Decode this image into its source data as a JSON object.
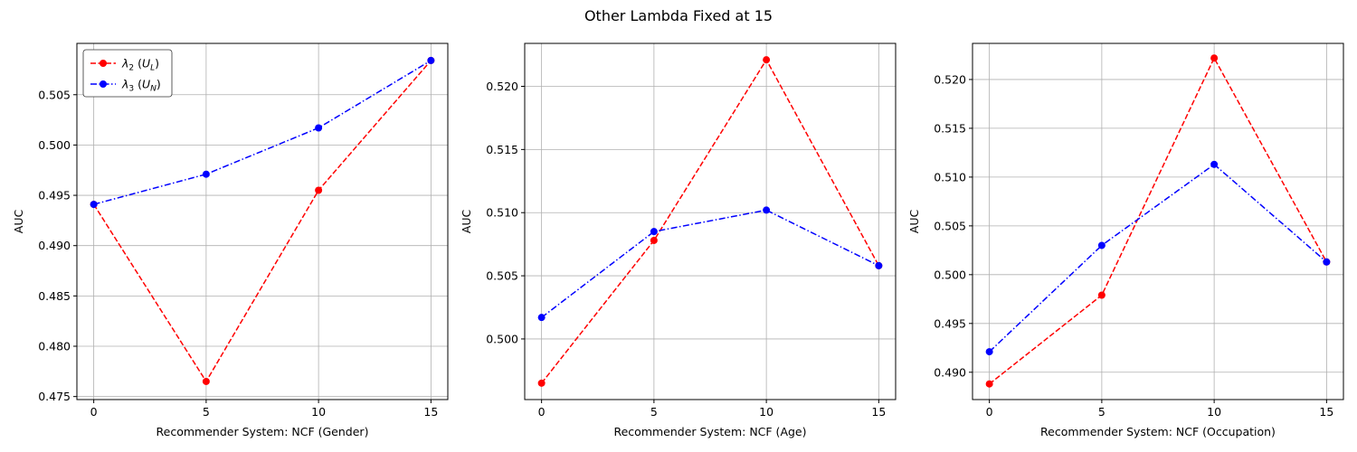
{
  "suptitle": "Other Lambda Fixed at 15",
  "chart_data": [
    {
      "type": "line",
      "xlabel": "Recommender System: NCF (Gender)",
      "ylabel": "AUC",
      "x": [
        0,
        5,
        10,
        15
      ],
      "xticks": [
        "0",
        "5",
        "10",
        "15"
      ],
      "yticks": [
        "0.475",
        "0.480",
        "0.485",
        "0.490",
        "0.495",
        "0.500",
        "0.505"
      ],
      "xlim": [
        -0.75,
        15.75
      ],
      "ylim": [
        0.4747,
        0.5101
      ],
      "grid": true,
      "legend": "top-left",
      "series": [
        {
          "name": "λ2 (UL)",
          "legend_base": "λ",
          "legend_sub": "2",
          "legend_paren": "U",
          "legend_paren_sub": "L",
          "color": "#ff0000",
          "style": "dashed",
          "marker": "circle",
          "values": [
            0.4941,
            0.4765,
            0.4955,
            0.5084
          ]
        },
        {
          "name": "λ3 (UN)",
          "legend_base": "λ",
          "legend_sub": "3",
          "legend_paren": "U",
          "legend_paren_sub": "N",
          "color": "#0000ff",
          "style": "dashdot",
          "marker": "circle",
          "values": [
            0.4941,
            0.4971,
            0.5017,
            0.5084
          ]
        }
      ]
    },
    {
      "type": "line",
      "xlabel": "Recommender System: NCF (Age)",
      "ylabel": "AUC",
      "x": [
        0,
        5,
        10,
        15
      ],
      "xticks": [
        "0",
        "5",
        "10",
        "15"
      ],
      "yticks": [
        "0.500",
        "0.505",
        "0.510",
        "0.515",
        "0.520"
      ],
      "xlim": [
        -0.75,
        15.75
      ],
      "ylim": [
        0.4952,
        0.5234
      ],
      "grid": true,
      "legend": "none",
      "series": [
        {
          "name": "",
          "color": "#ff0000",
          "style": "dashed",
          "marker": "circle",
          "values": [
            0.4965,
            0.5078,
            0.5221,
            0.5058
          ]
        },
        {
          "name": "",
          "color": "#0000ff",
          "style": "dashdot",
          "marker": "circle",
          "values": [
            0.5017,
            0.5085,
            0.5102,
            0.5058
          ]
        }
      ]
    },
    {
      "type": "line",
      "xlabel": "Recommender System: NCF (Occupation)",
      "ylabel": "AUC",
      "x": [
        0,
        5,
        10,
        15
      ],
      "xticks": [
        "0",
        "5",
        "10",
        "15"
      ],
      "yticks": [
        "0.490",
        "0.495",
        "0.500",
        "0.505",
        "0.510",
        "0.515",
        "0.520"
      ],
      "xlim": [
        -0.75,
        15.75
      ],
      "ylim": [
        0.4872,
        0.5237
      ],
      "grid": true,
      "legend": "none",
      "series": [
        {
          "name": "",
          "color": "#ff0000",
          "style": "dashed",
          "marker": "circle",
          "values": [
            0.4888,
            0.4979,
            0.5222,
            0.5013
          ]
        },
        {
          "name": "",
          "color": "#0000ff",
          "style": "dashdot",
          "marker": "circle",
          "values": [
            0.4921,
            0.503,
            0.5113,
            0.5013
          ]
        }
      ]
    }
  ]
}
